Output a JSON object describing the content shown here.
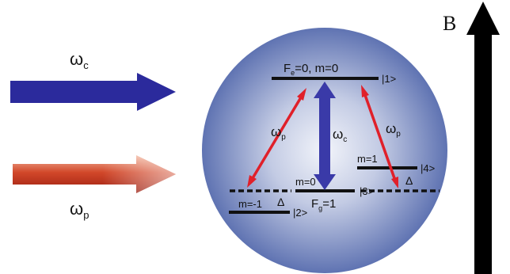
{
  "beams": {
    "coupling": {
      "symbol": "ω",
      "subscript": "c"
    },
    "probe": {
      "symbol": "ω",
      "subscript": "p"
    }
  },
  "field": {
    "label": "B"
  },
  "levels": {
    "excited": {
      "label_main": "F",
      "label_sub": "e",
      "label_rest": "=0, m=0",
      "ket": "|1>"
    },
    "ground_left": {
      "label": "m=-1",
      "ket": "|2>"
    },
    "ground_center": {
      "label_top": "m=0",
      "label_main": "F",
      "label_sub": "g",
      "label_rest": "=1",
      "ket": "|3>"
    },
    "ground_right": {
      "label": "m=1",
      "ket": "|4>"
    }
  },
  "transitions": {
    "probe_left": {
      "symbol": "ω",
      "subscript": "p"
    },
    "coupling_center": {
      "symbol": "ω",
      "subscript": "c"
    },
    "probe_right": {
      "symbol": "ω",
      "subscript": "p"
    }
  },
  "detuning": {
    "left": "Δ",
    "right": "Δ"
  },
  "colors": {
    "coupling_beam": "#2b2a9c",
    "probe_beam": "#c42a17",
    "probe_arrow": "#e0202a",
    "coupling_arrow": "#3a3aa8",
    "sphere_center": "#f2f4fa",
    "sphere_edge": "#5f73b2",
    "level_line": "#111111"
  }
}
